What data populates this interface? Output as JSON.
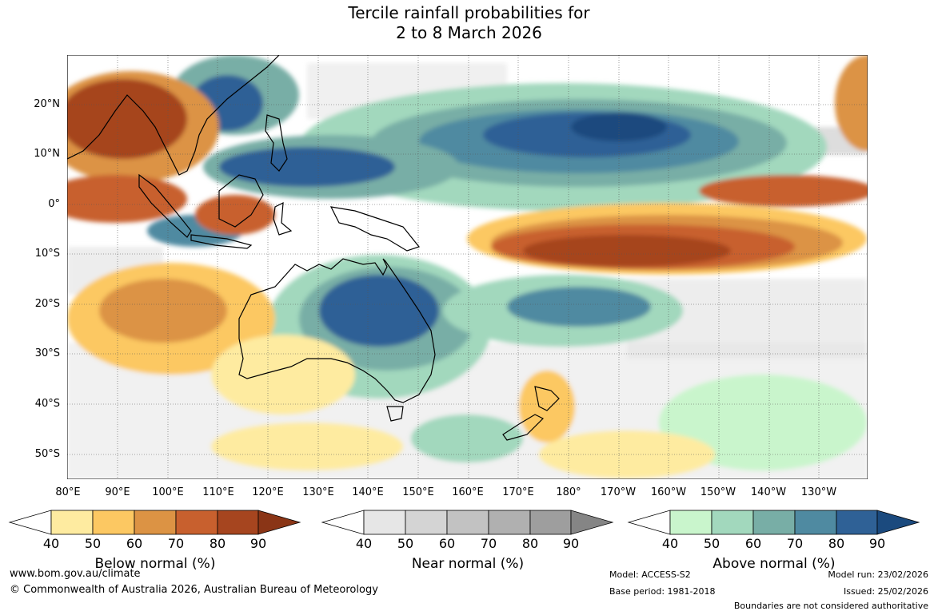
{
  "title_line1": "Tercile rainfall probabilities for",
  "title_line2": "2 to 8 March 2026",
  "lat_labels": [
    "20°N",
    "10°N",
    "0°",
    "10°S",
    "20°S",
    "30°S",
    "40°S",
    "50°S"
  ],
  "lon_labels": [
    "80°E",
    "90°E",
    "100°E",
    "110°E",
    "120°E",
    "130°E",
    "140°E",
    "150°E",
    "160°E",
    "170°E",
    "180°",
    "170°W",
    "160°W",
    "150°W",
    "140°W",
    "130°W"
  ],
  "colorbars": {
    "below": {
      "title": "Below normal (%)",
      "ticks": [
        "40",
        "50",
        "60",
        "70",
        "80",
        "90"
      ],
      "colors": [
        "#ffffff",
        "#feeba0",
        "#fcc862",
        "#dc9344",
        "#c8602e",
        "#a6451f",
        "#8a3516"
      ]
    },
    "near": {
      "title": "Near normal (%)",
      "ticks": [
        "40",
        "50",
        "60",
        "70",
        "80",
        "90"
      ],
      "colors": [
        "#ffffff",
        "#e6e6e6",
        "#d4d4d4",
        "#c2c2c2",
        "#b0b0b0",
        "#9e9e9e",
        "#858585"
      ]
    },
    "above": {
      "title": "Above normal (%)",
      "ticks": [
        "40",
        "50",
        "60",
        "70",
        "80",
        "90"
      ],
      "colors": [
        "#ffffff",
        "#c9f5cc",
        "#a2d8bd",
        "#78aea6",
        "#4f8aa1",
        "#2f6196",
        "#1b4a7e"
      ]
    }
  },
  "footer": {
    "url": "www.bom.gov.au/climate",
    "copyright": "© Commonwealth of Australia 2026, Australian Bureau of Meteorology",
    "model": "Model: ACCESS-S2",
    "base_period": "Base period: 1981-2018",
    "model_run": "Model run: 23/02/2026",
    "issued": "Issued: 25/02/2026",
    "disclaimer": "Boundaries are not considered authoritative"
  }
}
